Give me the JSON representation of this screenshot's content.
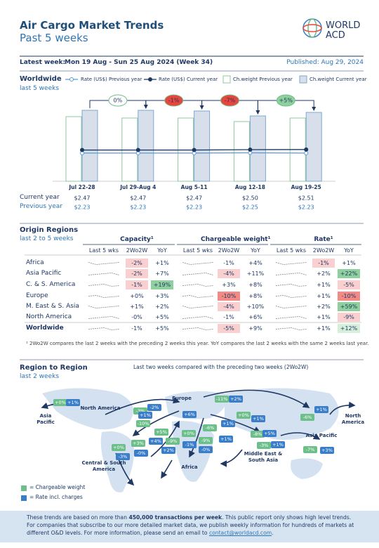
{
  "header": {
    "title": "Air Cargo Market Trends",
    "subtitle": "Past 5 weeks",
    "logo_lines": [
      "WORLD",
      "ACD"
    ]
  },
  "latest_week": {
    "label": "Latest week:",
    "period": "Mon 19 Aug - Sun 25 Aug 2024 (Week 34)",
    "published": "Published: Aug 29, 2024"
  },
  "chart_data": {
    "type": "bar",
    "title": "Worldwide",
    "subtitle": "last 5 weeks",
    "categories": [
      "Jul 22-28",
      "Jul 29-Aug 4",
      "Aug 5-11",
      "Aug 12-18",
      "Aug 19-25"
    ],
    "series": [
      {
        "name": "Rate (US$) Previous year",
        "type": "line",
        "color": "#5b9bd5",
        "values": [
          2.23,
          2.23,
          2.23,
          2.25,
          2.23
        ],
        "value_labels": [
          "$2.23",
          "$2.23",
          "$2.23",
          "$2.25",
          "$2.23"
        ]
      },
      {
        "name": "Rate (US$) Current year",
        "type": "line",
        "color": "#1f3864",
        "values": [
          2.47,
          2.47,
          2.47,
          2.5,
          2.51
        ],
        "value_labels": [
          "$2.47",
          "$2.47",
          "$2.47",
          "$2.50",
          "$2.51"
        ]
      },
      {
        "name": "Ch.weight Previous year",
        "color": "#ffffff",
        "stroke": "#8cc9a0",
        "values": [
          92,
          90,
          90,
          85,
          90
        ]
      },
      {
        "name": "Ch.weight Current year",
        "color": "#d6dfea",
        "stroke": "#7fa7cf",
        "values": [
          101,
          101,
          100,
          93,
          98
        ]
      }
    ],
    "row_labels": [
      "Current year",
      "Previous year"
    ],
    "changes": [
      "0%",
      "-1%",
      "-7%",
      "+5%"
    ],
    "change_colors": [
      "#ffffff",
      "#e8453c",
      "#e8453c",
      "#8fd19e"
    ]
  },
  "origin_regions": {
    "title": "Origin Regions",
    "subtitle": "last 2 to 5 weeks",
    "groups": [
      "Capacity¹",
      "Chargeable weight¹",
      "Rate¹"
    ],
    "columns": [
      "Last 5 wks",
      "2Wo2W",
      "YoY"
    ],
    "rows": [
      {
        "region": "Africa",
        "cells": [
          "-2%",
          "+1%",
          "-1%",
          "+4%",
          "-1%",
          "+1%"
        ],
        "tones": [
          "pink",
          "none",
          "none",
          "none",
          "pink",
          "none"
        ]
      },
      {
        "region": "Asia Pacific",
        "cells": [
          "-2%",
          "+7%",
          "-4%",
          "+11%",
          "+2%",
          "+22%"
        ],
        "tones": [
          "pink",
          "none",
          "pink",
          "none",
          "none",
          "green"
        ]
      },
      {
        "region": "C. & S. America",
        "cells": [
          "-1%",
          "+19%",
          "+3%",
          "+8%",
          "+1%",
          "-5%"
        ],
        "tones": [
          "pink",
          "green",
          "none",
          "none",
          "none",
          "pink"
        ]
      },
      {
        "region": "Europe",
        "cells": [
          "+0%",
          "+3%",
          "-10%",
          "+8%",
          "+1%",
          "-10%"
        ],
        "tones": [
          "none",
          "none",
          "red",
          "none",
          "none",
          "red"
        ]
      },
      {
        "region": "M. East & S. Asia",
        "cells": [
          "+1%",
          "+2%",
          "-4%",
          "+10%",
          "+2%",
          "+59%"
        ],
        "tones": [
          "none",
          "none",
          "pink",
          "none",
          "none",
          "green"
        ]
      },
      {
        "region": "North America",
        "cells": [
          "-0%",
          "+5%",
          "-1%",
          "+6%",
          "+1%",
          "-9%"
        ],
        "tones": [
          "none",
          "none",
          "none",
          "none",
          "none",
          "pink"
        ]
      },
      {
        "region": "Worldwide",
        "cells": [
          "-1%",
          "+5%",
          "-5%",
          "+9%",
          "+1%",
          "+12%"
        ],
        "tones": [
          "none",
          "none",
          "pink",
          "none",
          "none",
          "lightgreen"
        ]
      }
    ],
    "footnote": "¹ 2Wo2W compares the last 2 weeks with the preceding 2 weeks this year. YoY compares the last 2 weeks with the same 2 weeks last year."
  },
  "region_map": {
    "title": "Region to Region",
    "subtitle": "last 2 weeks",
    "caption": "Last two weeks compared with the preceding two weeks (2Wo2W)",
    "regions": [
      "North America",
      "Asia Pacific",
      "Europe",
      "Central & South America",
      "Africa",
      "Middle East & South Asia",
      "Asia Pacific",
      "North America"
    ],
    "badges": [
      {
        "text": "+0%",
        "kind": "weight"
      },
      {
        "text": "+1%",
        "kind": "rate"
      },
      {
        "text": "-3%",
        "kind": "weight"
      },
      {
        "text": "-2%",
        "kind": "rate"
      },
      {
        "text": "-11%",
        "kind": "weight"
      },
      {
        "text": "+2%",
        "kind": "rate"
      },
      {
        "text": "+1%",
        "kind": "rate"
      },
      {
        "text": "-6%",
        "kind": "weight"
      },
      {
        "text": "+1%",
        "kind": "rate"
      },
      {
        "text": "-10%",
        "kind": "weight"
      },
      {
        "text": "+6%",
        "kind": "rate"
      },
      {
        "text": "+5%",
        "kind": "weight"
      },
      {
        "text": "-6%",
        "kind": "weight"
      },
      {
        "text": "+1%",
        "kind": "rate"
      },
      {
        "text": "+0%",
        "kind": "weight"
      },
      {
        "text": "+1%",
        "kind": "rate"
      },
      {
        "text": "+4%",
        "kind": "rate"
      },
      {
        "text": "-9%",
        "kind": "weight"
      },
      {
        "text": "+2%",
        "kind": "rate"
      },
      {
        "text": "+0%",
        "kind": "weight"
      },
      {
        "text": "-1%",
        "kind": "rate"
      },
      {
        "text": "-9%",
        "kind": "weight"
      },
      {
        "text": "-0%",
        "kind": "rate"
      },
      {
        "text": "+1%",
        "kind": "rate"
      },
      {
        "text": "+3%",
        "kind": "weight"
      },
      {
        "text": "-0%",
        "kind": "rate"
      },
      {
        "text": "+0%",
        "kind": "weight"
      },
      {
        "text": "-3%",
        "kind": "rate"
      },
      {
        "text": "-8%",
        "kind": "weight"
      },
      {
        "text": "+5%",
        "kind": "rate"
      },
      {
        "text": "-3%",
        "kind": "weight"
      },
      {
        "text": "+1%",
        "kind": "rate"
      },
      {
        "text": "-7%",
        "kind": "weight"
      },
      {
        "text": "+3%",
        "kind": "rate"
      }
    ],
    "legend": [
      {
        "kind": "weight",
        "label": "= Chargeable weight",
        "color": "#6dbf8a"
      },
      {
        "kind": "rate",
        "label": "= Rate incl. charges",
        "color": "#3a7dc9"
      }
    ]
  },
  "footer": {
    "parts": [
      "These trends are based on more than ",
      "450,000 transactions per week",
      ". This public report only shows high level trends. For companies that subscribe to our more detailed market data, we publish weekly information for hundreds of markets at different O&D levels. For more information, please send an email to ",
      "contact@worldacd.com",
      "."
    ]
  }
}
